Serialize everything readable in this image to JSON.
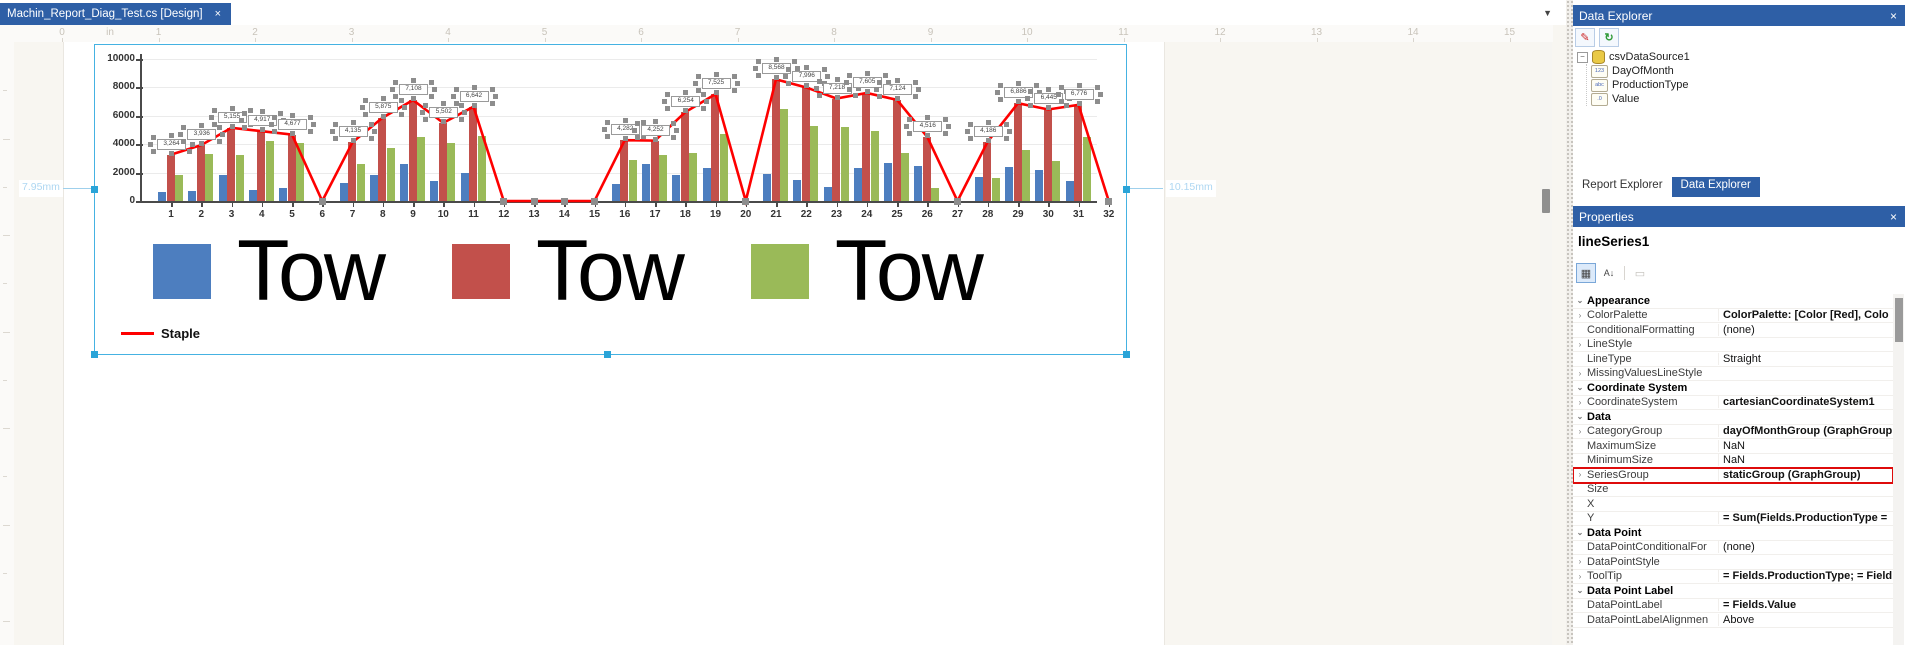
{
  "tab_bar": {
    "tab_label": "Machin_Report_Diag_Test.cs [Design]",
    "close_glyph": "×",
    "dropdown_glyph": "▼"
  },
  "ruler": {
    "unit_label": "in",
    "numbers": [
      "0",
      "1",
      "2",
      "3",
      "4",
      "5",
      "6",
      "7",
      "8",
      "9",
      "10",
      "11",
      "12",
      "13",
      "14",
      "15"
    ]
  },
  "dimensions": {
    "left_label": "7.95mm",
    "right_label": "10.15mm"
  },
  "chart_data": {
    "type": "bar+line",
    "categories": [
      "1",
      "2",
      "3",
      "4",
      "5",
      "6",
      "7",
      "8",
      "9",
      "10",
      "11",
      "12",
      "13",
      "14",
      "15",
      "16",
      "17",
      "18",
      "19",
      "20",
      "21",
      "22",
      "23",
      "24",
      "25",
      "26",
      "27",
      "28",
      "29",
      "30",
      "31",
      "32"
    ],
    "yticks": [
      "0",
      "2000",
      "4000",
      "6000",
      "8000",
      "10000"
    ],
    "ylim": [
      0,
      10000
    ],
    "series": [
      {
        "name": "Tow",
        "type": "bar",
        "color": "#4d7ebf",
        "values": [
          600,
          700,
          1800,
          800,
          900,
          0,
          1300,
          1800,
          2600,
          1400,
          2000,
          0,
          0,
          0,
          0,
          1200,
          2600,
          1800,
          2300,
          0,
          1900,
          1500,
          1000,
          2300,
          2700,
          2500,
          0,
          1700,
          2400,
          2200,
          1400,
          0
        ]
      },
      {
        "name": "Tow",
        "type": "bar",
        "color": "#c2504b",
        "values": [
          3264,
          3936,
          5155,
          4917,
          4677,
          0,
          4135,
          5875,
          7108,
          5502,
          6642,
          0,
          0,
          0,
          0,
          4282,
          4252,
          6254,
          7525,
          0,
          8568,
          7996,
          7218,
          7605,
          7124,
          4516,
          0,
          4186,
          6886,
          6445,
          6776,
          0
        ]
      },
      {
        "name": "Tow",
        "type": "bar",
        "color": "#9aba58",
        "values": [
          1800,
          3300,
          3250,
          4250,
          4050,
          0,
          2600,
          3700,
          4500,
          4100,
          4600,
          0,
          0,
          0,
          0,
          2900,
          3250,
          3350,
          4700,
          0,
          6500,
          5300,
          5200,
          4900,
          3400,
          900,
          0,
          1600,
          3600,
          2800,
          4500,
          0
        ]
      },
      {
        "name": "Staple",
        "type": "line",
        "color": "#fe0000",
        "values": [
          3264,
          3936,
          5155,
          4917,
          4677,
          0,
          4135,
          5875,
          7108,
          5502,
          6642,
          0,
          0,
          0,
          0,
          4282,
          4252,
          6254,
          7525,
          0,
          8568,
          7996,
          7218,
          7605,
          7124,
          4516,
          0,
          4186,
          6886,
          6445,
          6776,
          0
        ],
        "point_labels": [
          "3,264",
          "3,936",
          "5,155",
          "4,917",
          "4,677",
          "",
          "4,135",
          "5,875",
          "7,108",
          "5,502",
          "6,642",
          "",
          "",
          "",
          "",
          "4,282",
          "4,252",
          "6,254",
          "7,525",
          "",
          "8,568",
          "7,996",
          "7,218",
          "7,605",
          "7,124",
          "4,516",
          "",
          "4,186",
          "6,886",
          "6,445",
          "6,776",
          ""
        ]
      }
    ],
    "legend": {
      "bar_labels": [
        "Tow",
        "Tow",
        "Tow"
      ],
      "line_label": "Staple"
    },
    "grid": true,
    "legend_position": "bottom"
  },
  "data_explorer": {
    "title": "Data Explorer",
    "close_glyph": "×",
    "toolbar": {
      "edit_glyph": "✎",
      "refresh_glyph": "↻"
    },
    "tree": {
      "expand_glyph": "−",
      "root_label": "csvDataSource1",
      "fields": [
        {
          "label": "DayOfMonth",
          "icon_text": "123"
        },
        {
          "label": "ProductionType",
          "icon_text": "abc"
        },
        {
          "label": "Value",
          "icon_text": ".0"
        }
      ]
    }
  },
  "dock_tabs": [
    {
      "label": "Report Explorer",
      "active": false
    },
    {
      "label": "Data Explorer",
      "active": true
    }
  ],
  "properties": {
    "title": "Properties",
    "close_glyph": "×",
    "object_name": "lineSeries1",
    "toolbar_icons": [
      "categorized-icon",
      "alphabetical-icon",
      "property-pages-icon"
    ],
    "rows": [
      {
        "kind": "category",
        "name": "Appearance"
      },
      {
        "kind": "prop",
        "name": "ColorPalette",
        "value": "ColorPalette: [Color [Red], Colo",
        "bold": true,
        "expandable": true
      },
      {
        "kind": "prop",
        "name": "ConditionalFormatting",
        "value": "(none)"
      },
      {
        "kind": "prop",
        "name": "LineStyle",
        "value": "",
        "expandable": true
      },
      {
        "kind": "prop",
        "name": "LineType",
        "value": "Straight"
      },
      {
        "kind": "prop",
        "name": "MissingValuesLineStyle",
        "value": "",
        "expandable": true
      },
      {
        "kind": "category",
        "name": "Coordinate System"
      },
      {
        "kind": "prop",
        "name": "CoordinateSystem",
        "value": "cartesianCoordinateSystem1",
        "bold": true,
        "expandable": true
      },
      {
        "kind": "category",
        "name": "Data"
      },
      {
        "kind": "prop",
        "name": "CategoryGroup",
        "value": "dayOfMonthGroup (GraphGroup",
        "bold": true,
        "expandable": true
      },
      {
        "kind": "prop",
        "name": "MaximumSize",
        "value": "NaN"
      },
      {
        "kind": "prop",
        "name": "MinimumSize",
        "value": "NaN"
      },
      {
        "kind": "prop",
        "name": "SeriesGroup",
        "value": "staticGroup (GraphGroup)",
        "bold": true,
        "expandable": true,
        "highlighted": true
      },
      {
        "kind": "prop",
        "name": "Size",
        "value": ""
      },
      {
        "kind": "prop",
        "name": "X",
        "value": ""
      },
      {
        "kind": "prop",
        "name": "Y",
        "value": "= Sum(Fields.ProductionType =",
        "bold": true
      },
      {
        "kind": "category",
        "name": "Data Point"
      },
      {
        "kind": "prop",
        "name": "DataPointConditionalFor",
        "value": "(none)"
      },
      {
        "kind": "prop",
        "name": "DataPointStyle",
        "value": "",
        "expandable": true
      },
      {
        "kind": "prop",
        "name": "ToolTip",
        "value": "= Fields.ProductionType; = Field",
        "bold": true,
        "expandable": true
      },
      {
        "kind": "category",
        "name": "Data Point Label"
      },
      {
        "kind": "prop",
        "name": "DataPointLabel",
        "value": "= Fields.Value",
        "bold": true
      },
      {
        "kind": "prop",
        "name": "DataPointLabelAlignmen",
        "value": "Above"
      }
    ]
  }
}
